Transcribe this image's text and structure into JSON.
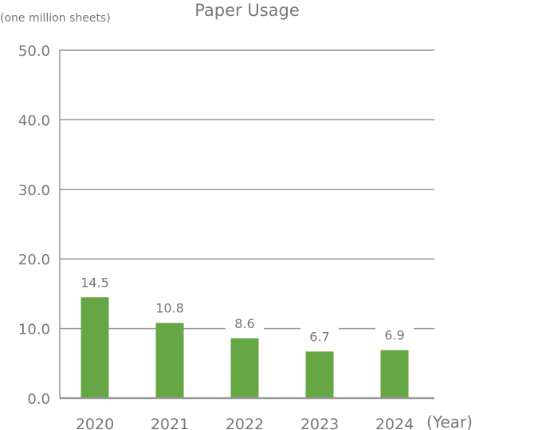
{
  "chart_data": {
    "type": "bar",
    "title": "Paper Usage",
    "ylabel": "(one million sheets)",
    "xlabel": "(Year)",
    "categories": [
      "2020",
      "2021",
      "2022",
      "2023",
      "2024"
    ],
    "values": [
      14.5,
      10.8,
      8.6,
      6.7,
      6.9
    ],
    "data_labels": [
      "14.5",
      "10.8",
      "8.6",
      "6.7",
      "6.9"
    ],
    "ylim": [
      0,
      50
    ],
    "yticks": [
      "0.0",
      "10.0",
      "20.0",
      "30.0",
      "40.0",
      "50.0"
    ],
    "grid": true,
    "legend": "none",
    "colors": {
      "bar": "#66a644",
      "grid": "#999999",
      "text": "#777777"
    }
  }
}
